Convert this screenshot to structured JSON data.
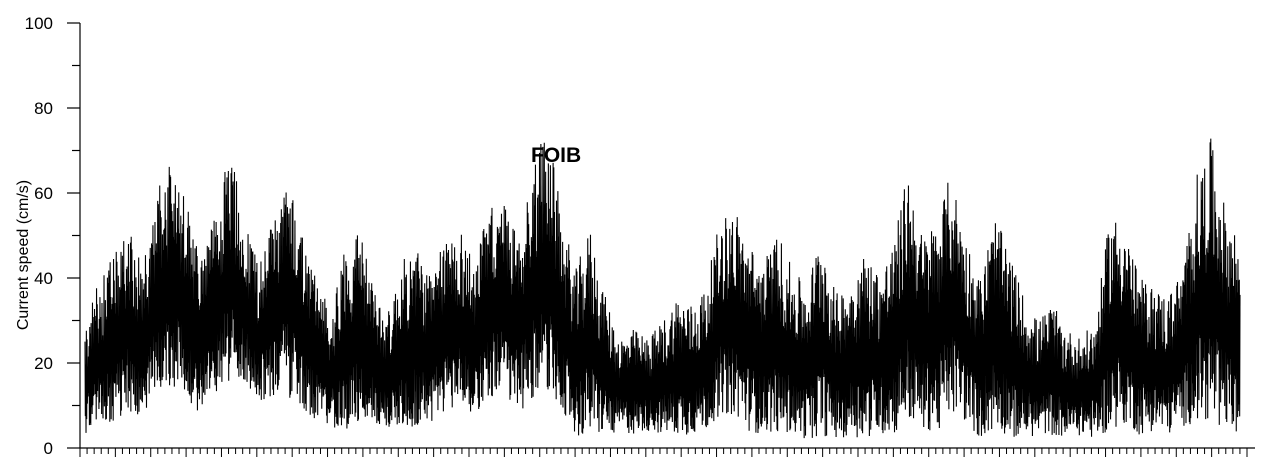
{
  "chart_data": {
    "type": "line",
    "title": "",
    "annotation": "FOIB",
    "xlabel": "",
    "ylabel": "Current speed (cm/s)",
    "ylim": [
      0,
      100
    ],
    "yticks": [
      0,
      20,
      40,
      60,
      80,
      100
    ],
    "y_minor_step": 10,
    "x_tick_labels_visible": false,
    "grid": false,
    "legend": "none",
    "line_color": "#000000",
    "series": [
      {
        "envelope_x": [
          0,
          1.5,
          3,
          4.5,
          6,
          7.5,
          9,
          10.5,
          12,
          13.5,
          15,
          16.5,
          18,
          19.5,
          21,
          22.5,
          24,
          25.5,
          27,
          28.5,
          30,
          31.5,
          33,
          34.5,
          36,
          37.5,
          39,
          40.5,
          42,
          43.5,
          45,
          46.5,
          48,
          49.5,
          51,
          52.5,
          54,
          55.5,
          57,
          58.5,
          60,
          61.5,
          63,
          64.5,
          66,
          67.5,
          69,
          70.5,
          72,
          73.5,
          75,
          76.5,
          78,
          79.5,
          81,
          82.5,
          84,
          85.5,
          87,
          88.5,
          90,
          91.5,
          93,
          94.5,
          96,
          97.5,
          99,
          100.5,
          102,
          103.5,
          105,
          106.5,
          108,
          109.5,
          111,
          112.5,
          114,
          115.5,
          117,
          118.5,
          120
        ],
        "envelope_max": [
          28,
          40,
          45,
          52,
          42,
          60,
          70,
          58,
          45,
          54,
          71,
          55,
          44,
          54,
          66,
          52,
          40,
          32,
          48,
          52,
          38,
          32,
          44,
          48,
          40,
          50,
          52,
          44,
          57,
          58,
          50,
          66,
          77,
          55,
          42,
          52,
          36,
          26,
          28,
          26,
          30,
          36,
          34,
          38,
          54,
          57,
          48,
          44,
          51,
          42,
          38,
          52,
          36,
          40,
          46,
          42,
          48,
          66,
          50,
          54,
          65,
          50,
          40,
          55,
          46,
          36,
          30,
          34,
          28,
          26,
          30,
          55,
          54,
          40,
          38,
          36,
          42,
          64,
          73,
          56,
          50
        ],
        "envelope_min": [
          3,
          5,
          6,
          9,
          6,
          12,
          15,
          12,
          8,
          12,
          16,
          16,
          10,
          12,
          12,
          10,
          6,
          4,
          3,
          6,
          5,
          4,
          5,
          4,
          6,
          8,
          10,
          8,
          12,
          12,
          8,
          12,
          14,
          10,
          2,
          3,
          3,
          4,
          3,
          4,
          3,
          3,
          3,
          4,
          8,
          8,
          4,
          3,
          4,
          3,
          2,
          3,
          2,
          3,
          2,
          3,
          3,
          6,
          4,
          4,
          8,
          6,
          2,
          4,
          3,
          2,
          3,
          3,
          2,
          3,
          2,
          4,
          6,
          3,
          4,
          3,
          5,
          6,
          6,
          5,
          2
        ]
      }
    ]
  }
}
